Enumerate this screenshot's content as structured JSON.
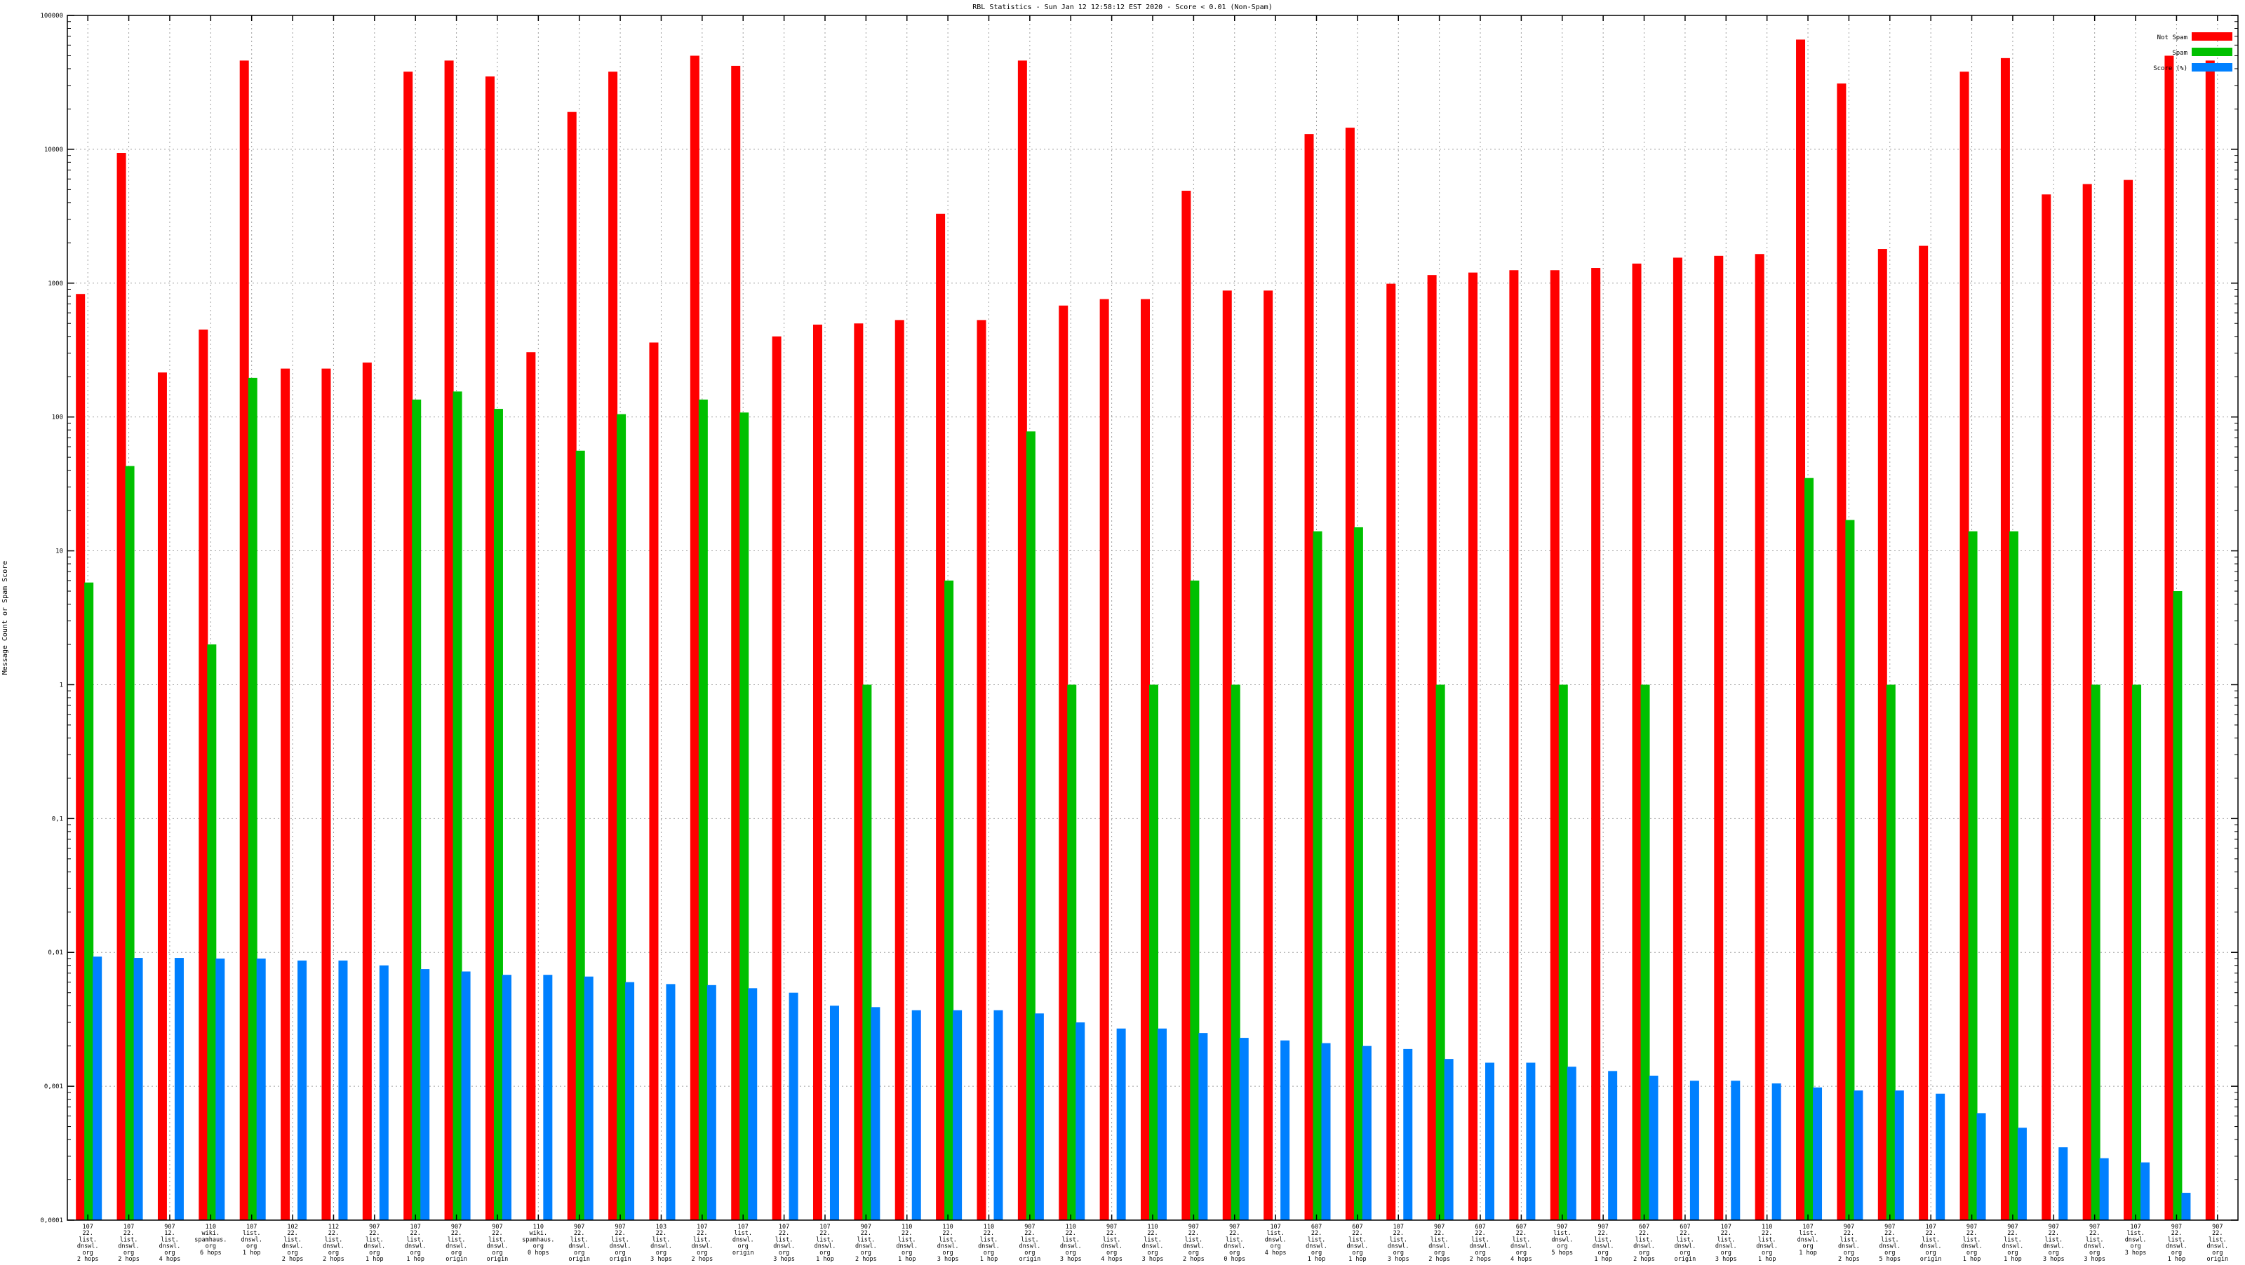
{
  "chart_data": {
    "type": "bar",
    "title": "RBL Statistics - Sun Jan 12 12:58:12 EST 2020 - Score < 0.01 (Non-Spam)",
    "ylabel": "Message Count or Spam Score",
    "xlabel": "",
    "yscale": "log",
    "ylim": [
      0.0001,
      100000
    ],
    "yticks": [
      "0.0001",
      "0.001",
      "0.01",
      "0.1",
      "1",
      "10",
      "100",
      "1000",
      "10000",
      "100000"
    ],
    "grid": true,
    "legend_position": "top-right",
    "categories": [
      [
        "107",
        "22.",
        "list.",
        "dnswl.",
        "org",
        "2 hops"
      ],
      [
        "107",
        "22.",
        "list.",
        "dnswl.",
        "org",
        "2 hops"
      ],
      [
        "907",
        "12.",
        "list.",
        "dnswl.",
        "org",
        "4 hops"
      ],
      [
        "110",
        "wiki.",
        "spamhaus.",
        "org",
        "6 hops"
      ],
      [
        "107",
        "list.",
        "dnswl.",
        "org",
        "1 hop"
      ],
      [
        "102",
        "22.",
        "list.",
        "dnswl.",
        "org",
        "2 hops"
      ],
      [
        "112",
        "22.",
        "list.",
        "dnswl.",
        "org",
        "2 hops"
      ],
      [
        "907",
        "22.",
        "list.",
        "dnswl.",
        "org",
        "1 hop"
      ],
      [
        "107",
        "22.",
        "list.",
        "dnswl.",
        "org",
        "1 hop"
      ],
      [
        "907",
        "22.",
        "list.",
        "dnswl.",
        "org",
        "origin"
      ],
      [
        "907",
        "22.",
        "list.",
        "dnswl.",
        "org",
        "origin"
      ],
      [
        "110",
        "wiki.",
        "spamhaus.",
        "org",
        "0 hops"
      ],
      [
        "907",
        "22.",
        "list.",
        "dnswl.",
        "org",
        "origin"
      ],
      [
        "907",
        "22.",
        "list.",
        "dnswl.",
        "org",
        "origin"
      ],
      [
        "103",
        "22.",
        "list.",
        "dnswl.",
        "org",
        "3 hops"
      ],
      [
        "107",
        "22.",
        "list.",
        "dnswl.",
        "org",
        "2 hops"
      ],
      [
        "107",
        "list.",
        "dnswl.",
        "org",
        "origin"
      ],
      [
        "107",
        "22.",
        "list.",
        "dnswl.",
        "org",
        "3 hops"
      ],
      [
        "107",
        "22.",
        "list.",
        "dnswl.",
        "org",
        "1 hop"
      ],
      [
        "907",
        "22.",
        "list.",
        "dnswl.",
        "org",
        "2 hops"
      ],
      [
        "110",
        "22.",
        "list.",
        "dnswl.",
        "org",
        "1 hop"
      ],
      [
        "110",
        "22.",
        "list.",
        "dnswl.",
        "org",
        "3 hops"
      ],
      [
        "110",
        "22.",
        "list.",
        "dnswl.",
        "org",
        "1 hop"
      ],
      [
        "907",
        "22.",
        "list.",
        "dnswl.",
        "org",
        "origin"
      ],
      [
        "110",
        "22.",
        "list.",
        "dnswl.",
        "org",
        "3 hops"
      ],
      [
        "907",
        "22.",
        "list.",
        "dnswl.",
        "org",
        "4 hops"
      ],
      [
        "110",
        "22.",
        "list.",
        "dnswl.",
        "org",
        "3 hops"
      ],
      [
        "907",
        "22.",
        "list.",
        "dnswl.",
        "org",
        "2 hops"
      ],
      [
        "907",
        "22.",
        "list.",
        "dnswl.",
        "org",
        "0 hops"
      ],
      [
        "107",
        "list.",
        "dnswl.",
        "org",
        "4 hops"
      ],
      [
        "607",
        "22.",
        "list.",
        "dnswl.",
        "org",
        "1 hop"
      ],
      [
        "607",
        "22.",
        "list.",
        "dnswl.",
        "org",
        "1 hop"
      ],
      [
        "107",
        "22.",
        "list.",
        "dnswl.",
        "org",
        "3 hops"
      ],
      [
        "907",
        "22.",
        "list.",
        "dnswl.",
        "org",
        "2 hops"
      ],
      [
        "607",
        "22.",
        "list.",
        "dnswl.",
        "org",
        "2 hops"
      ],
      [
        "607",
        "22.",
        "list.",
        "dnswl.",
        "org",
        "4 hops"
      ],
      [
        "907",
        "list.",
        "dnswl.",
        "org",
        "5 hops"
      ],
      [
        "907",
        "22.",
        "list.",
        "dnswl.",
        "org",
        "1 hop"
      ],
      [
        "607",
        "22.",
        "list.",
        "dnswl.",
        "org",
        "2 hops"
      ],
      [
        "607",
        "22.",
        "list.",
        "dnswl.",
        "org",
        "origin"
      ],
      [
        "107",
        "22.",
        "list.",
        "dnswl.",
        "org",
        "3 hops"
      ],
      [
        "110",
        "22.",
        "list.",
        "dnswl.",
        "org",
        "1 hop"
      ],
      [
        "107",
        "list.",
        "dnswl.",
        "org",
        "1 hop"
      ],
      [
        "907",
        "22.",
        "list.",
        "dnswl.",
        "org",
        "2 hops"
      ],
      [
        "907",
        "22.",
        "list.",
        "dnswl.",
        "org",
        "5 hops"
      ],
      [
        "107",
        "22.",
        "list.",
        "dnswl.",
        "org",
        "origin"
      ],
      [
        "907",
        "22.",
        "list.",
        "dnswl.",
        "org",
        "1 hop"
      ],
      [
        "907",
        "22.",
        "list.",
        "dnswl.",
        "org",
        "1 hop"
      ],
      [
        "907",
        "22.",
        "list.",
        "dnswl.",
        "org",
        "3 hops"
      ],
      [
        "907",
        "22.",
        "list.",
        "dnswl.",
        "org",
        "3 hops"
      ],
      [
        "107",
        "list.",
        "dnswl.",
        "org",
        "3 hops"
      ],
      [
        "907",
        "22.",
        "list.",
        "dnswl.",
        "org",
        "1 hop"
      ],
      [
        "907",
        "22.",
        "list.",
        "dnswl.",
        "org",
        "origin"
      ]
    ],
    "series": [
      {
        "name": "Not Spam",
        "color": "#ff0000",
        "values": [
          830,
          9400,
          215,
          450,
          46000,
          230,
          230,
          255,
          38000,
          46000,
          35000,
          305,
          19000,
          38000,
          360,
          50000,
          42000,
          400,
          490,
          500,
          530,
          3300,
          530,
          46000,
          680,
          760,
          760,
          4900,
          880,
          880,
          13000,
          14500,
          990,
          1150,
          1200,
          1250,
          1250,
          1300,
          1400,
          1550,
          1600,
          1650,
          66000,
          31000,
          1800,
          1900,
          38000,
          48000,
          4600,
          5500,
          5900,
          50000,
          46000
        ]
      },
      {
        "name": "Spam",
        "color": "#00c000",
        "values": [
          5.8,
          43,
          null,
          2.0,
          196,
          null,
          null,
          null,
          135,
          155,
          115,
          null,
          56,
          105,
          null,
          135,
          108,
          null,
          null,
          1,
          null,
          6.0,
          null,
          78,
          1,
          null,
          1,
          6.0,
          1,
          null,
          14,
          15,
          null,
          1,
          null,
          null,
          1,
          null,
          1,
          null,
          null,
          null,
          35,
          17,
          1,
          null,
          14,
          14,
          null,
          1,
          1,
          5.0,
          null
        ]
      },
      {
        "name": "Score (%)",
        "color": "#0080ff",
        "values": [
          0.0093,
          0.0091,
          0.0091,
          0.009,
          0.009,
          0.0087,
          0.0087,
          0.008,
          0.0075,
          0.0072,
          0.0068,
          0.0068,
          0.0066,
          0.006,
          0.0058,
          0.0057,
          0.0054,
          0.005,
          0.004,
          0.0039,
          0.0037,
          0.0037,
          0.0037,
          0.0035,
          0.003,
          0.0027,
          0.0027,
          0.0025,
          0.0023,
          0.0022,
          0.0021,
          0.002,
          0.0019,
          0.0016,
          0.0015,
          0.0015,
          0.0014,
          0.0013,
          0.0012,
          0.0011,
          0.0011,
          0.00105,
          0.00098,
          0.00093,
          0.00093,
          0.00088,
          0.00063,
          0.00049,
          0.00035,
          0.00029,
          0.00027,
          0.00016,
          null
        ]
      }
    ]
  }
}
